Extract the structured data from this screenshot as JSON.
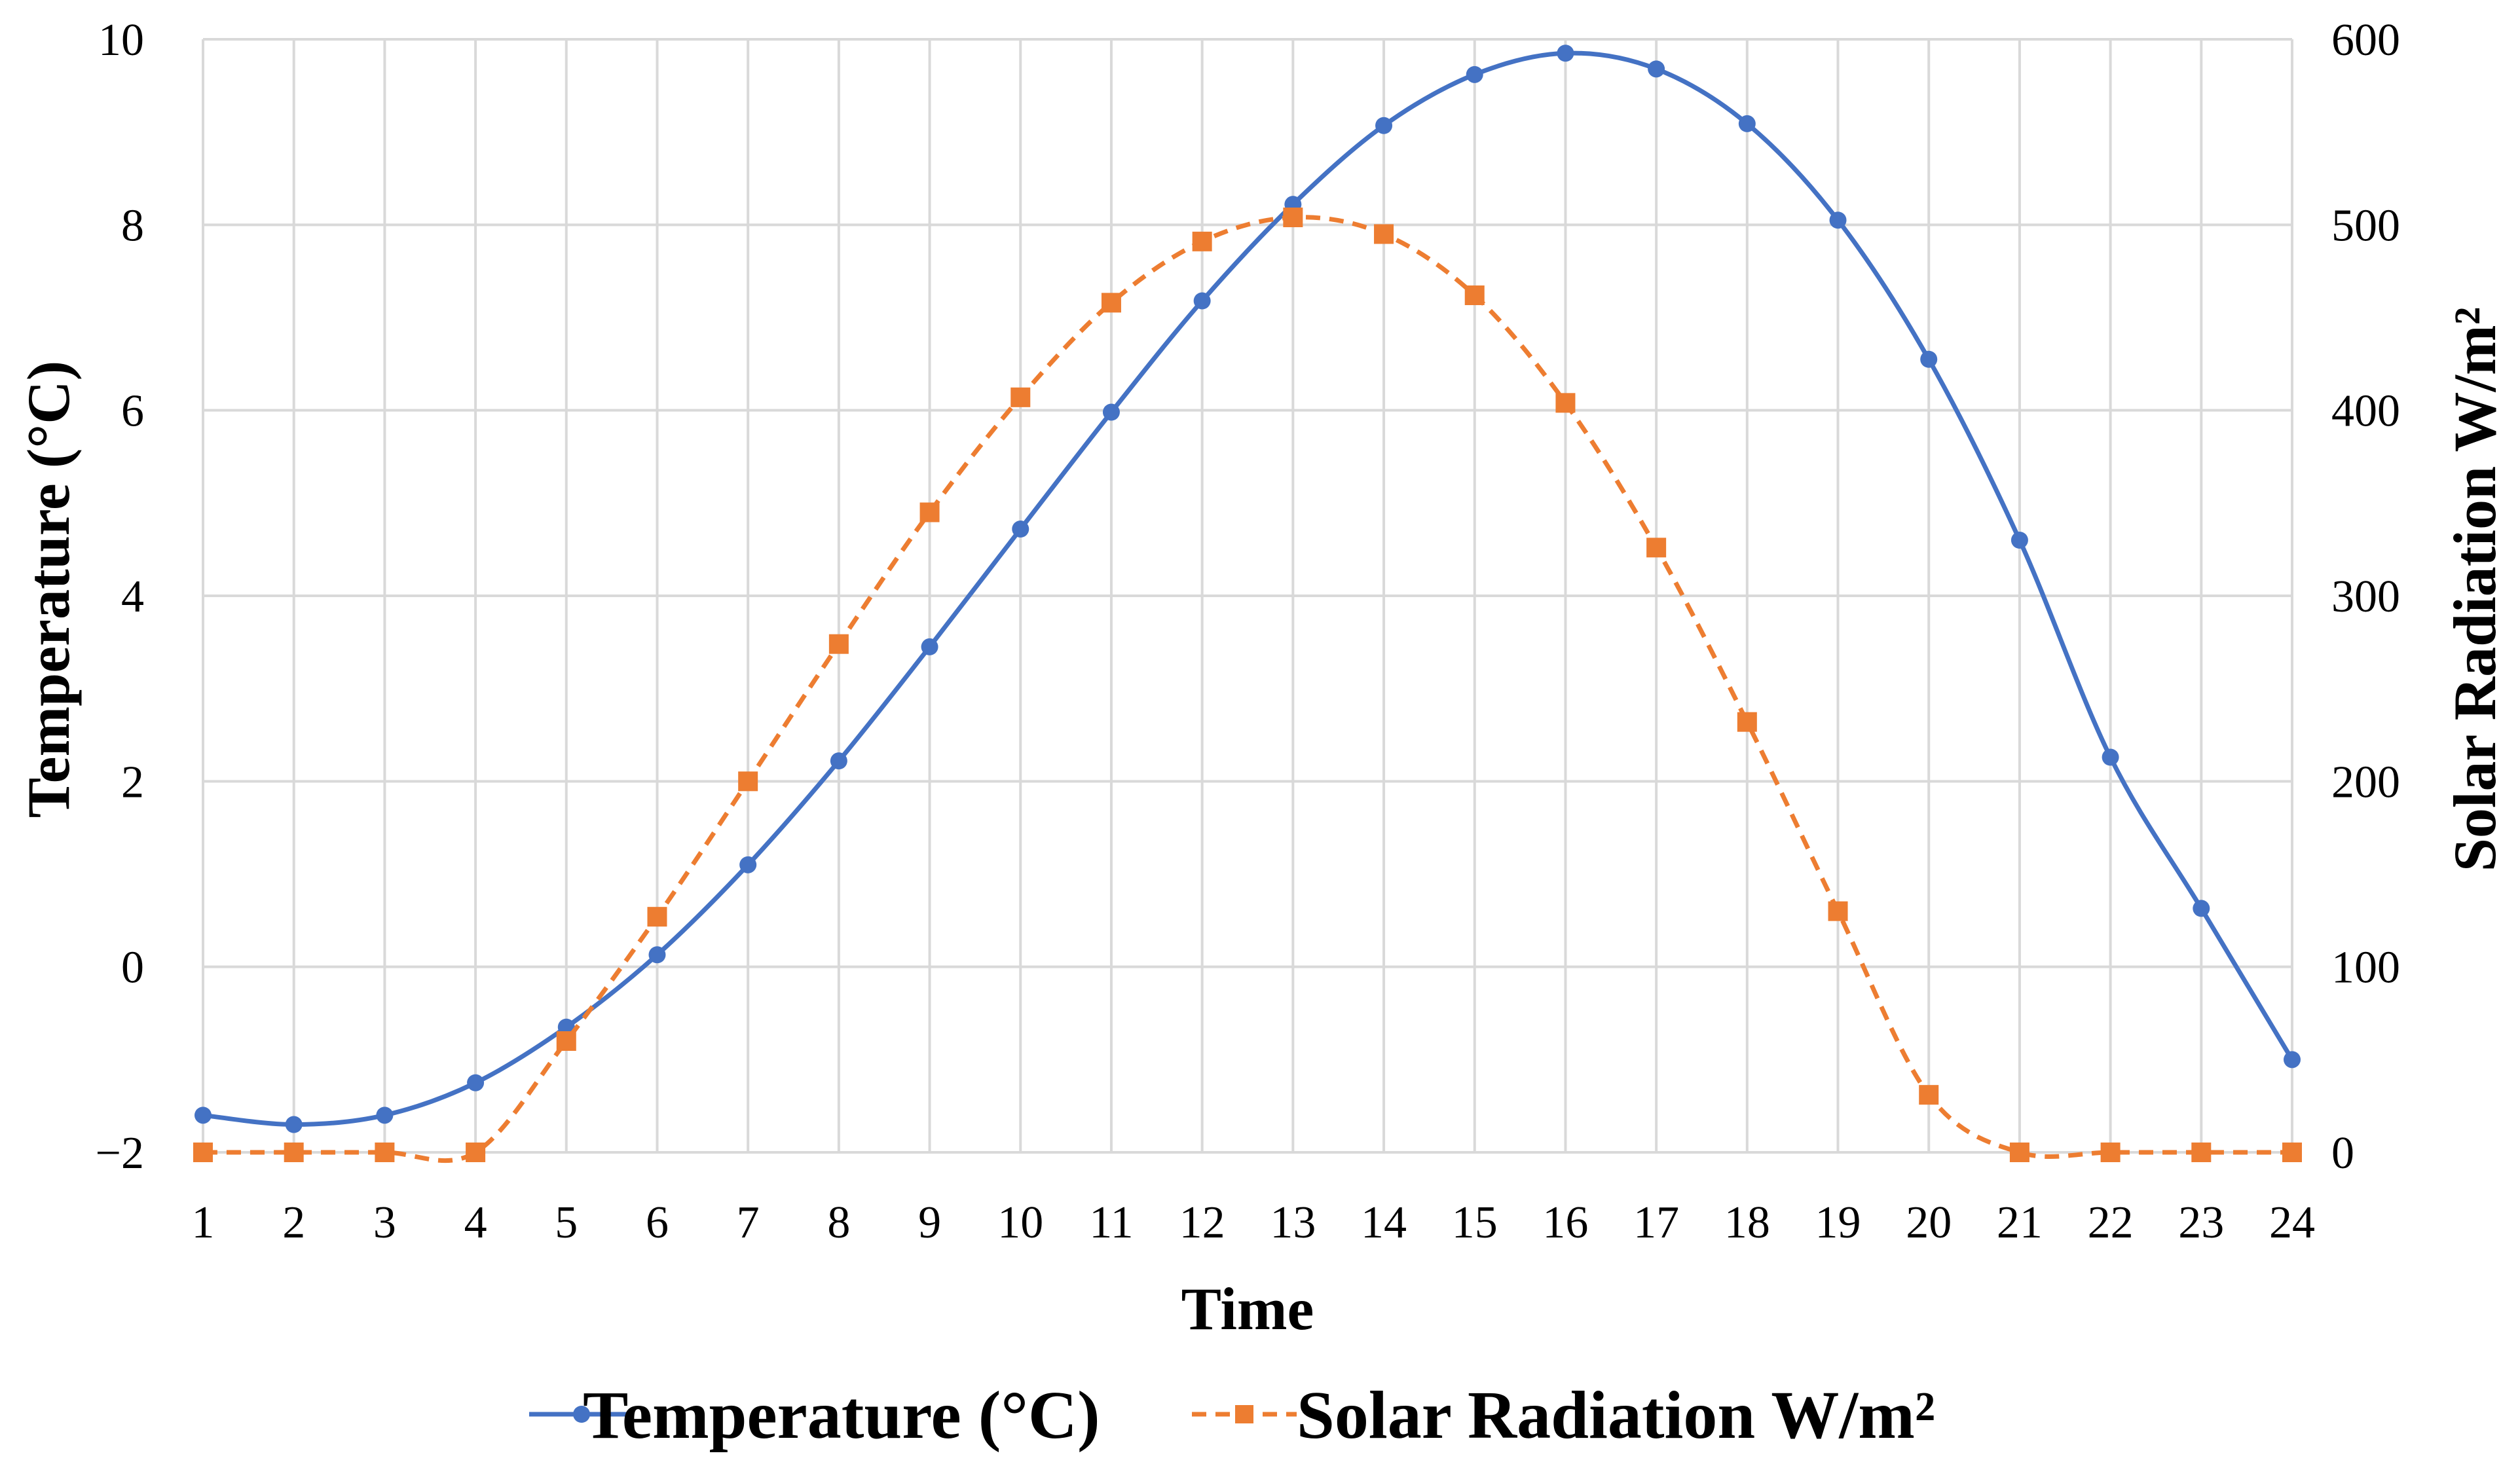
{
  "chart_data": {
    "type": "line",
    "title": "",
    "xlabel": "Time",
    "ylabel": "Temperature (°C)",
    "ylabel_right": "Solar Radiation W/m²",
    "x": [
      1,
      2,
      3,
      4,
      5,
      6,
      7,
      8,
      9,
      10,
      11,
      12,
      13,
      14,
      15,
      16,
      17,
      18,
      19,
      20,
      21,
      22,
      23,
      24
    ],
    "ylim": [
      -2,
      10
    ],
    "ylim_right": [
      0,
      600
    ],
    "yticks": [
      -2,
      0,
      2,
      4,
      6,
      8,
      10
    ],
    "yticks_labels": [
      "−2",
      "0",
      "2",
      "4",
      "6",
      "8",
      "10"
    ],
    "yticks_right": [
      0,
      100,
      200,
      300,
      400,
      500,
      600
    ],
    "grid": true,
    "legend_position": "bottom",
    "series": [
      {
        "name": "Temperature (°C)",
        "axis": "left",
        "color": "#4472c4",
        "marker": "circle",
        "dash": "solid",
        "values": [
          -1.6,
          -1.7,
          -1.6,
          -1.25,
          -0.65,
          0.13,
          1.1,
          2.22,
          3.45,
          4.72,
          5.98,
          7.18,
          8.22,
          9.07,
          9.62,
          9.85,
          9.68,
          9.09,
          8.05,
          6.55,
          4.6,
          2.26,
          0.63,
          -1.0
        ]
      },
      {
        "name": "Solar Radiation W/m²",
        "axis": "right",
        "color": "#ed7d31",
        "marker": "square",
        "dash": "dashed",
        "values": [
          0,
          0,
          0,
          0,
          60,
          127,
          200,
          274,
          345,
          407,
          458,
          491,
          504,
          495,
          462,
          404,
          326,
          232,
          130,
          31,
          0,
          0,
          0,
          0
        ]
      }
    ]
  }
}
